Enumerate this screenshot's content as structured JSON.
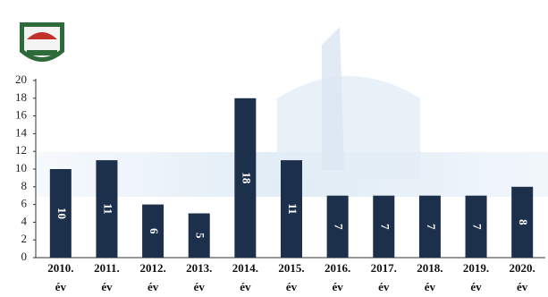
{
  "chart_data": {
    "type": "bar",
    "categories": [
      "2010. év",
      "2011. év",
      "2012. év",
      "2013. év",
      "2014. év",
      "2015. év",
      "2016. év",
      "2017. év",
      "2018. év",
      "2019. év",
      "2020. év"
    ],
    "values": [
      10,
      11,
      6,
      5,
      18,
      11,
      7,
      7,
      7,
      7,
      8
    ],
    "color": "#1c2f4b",
    "ylim": [
      0,
      20
    ],
    "yticks": [
      0,
      2,
      4,
      6,
      8,
      10,
      12,
      14,
      16,
      18,
      20
    ],
    "grid": false
  }
}
